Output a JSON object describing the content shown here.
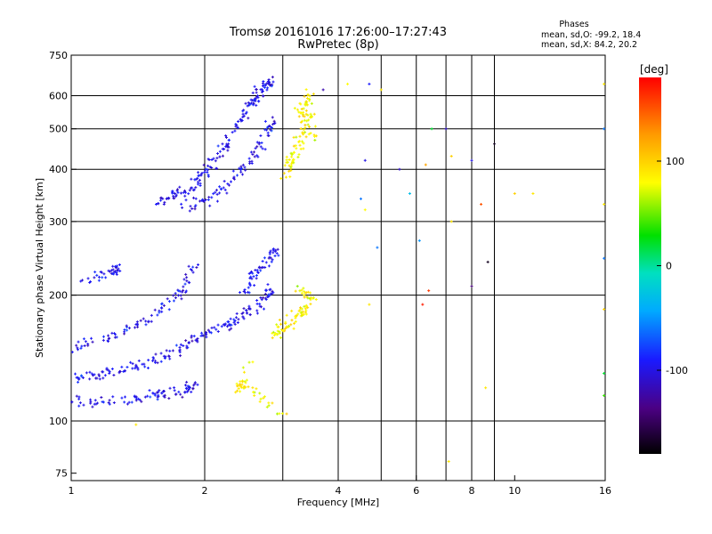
{
  "chart_data": {
    "type": "scatter",
    "title": "Tromsø 20161016 17:26:00–17:27:43",
    "subtitle": "RwPretec (8p)",
    "xlabel": "Frequency [MHz]",
    "ylabel": "Stationary phase Virtual Height [km]",
    "xscale": "log",
    "yscale": "log",
    "xlim": [
      1,
      16
    ],
    "ylim": [
      72,
      750
    ],
    "xticks": [
      {
        "v": 1,
        "label": "1"
      },
      {
        "v": 2,
        "label": "2"
      },
      {
        "v": 4,
        "label": "4"
      },
      {
        "v": 6,
        "label": "6"
      },
      {
        "v": 8,
        "label": "8"
      },
      {
        "v": 10,
        "label": "10"
      },
      {
        "v": 16,
        "label": "16"
      }
    ],
    "xgrid": [
      2,
      3,
      4,
      5,
      6,
      7,
      8,
      9
    ],
    "yticks": [
      {
        "v": 75,
        "label": "75"
      },
      {
        "v": 100,
        "label": "100"
      },
      {
        "v": 200,
        "label": "200"
      },
      {
        "v": 300,
        "label": "300"
      },
      {
        "v": 400,
        "label": "400"
      },
      {
        "v": 500,
        "label": "500"
      },
      {
        "v": 600,
        "label": "600"
      },
      {
        "v": 750,
        "label": "750"
      }
    ],
    "ygrid": [
      100,
      200,
      300,
      400,
      500,
      600
    ],
    "grid": true,
    "stats": {
      "heading": "Phases",
      "line1": "mean, sd,O: -99.2, 18.4",
      "line2": "mean, sd,X:  84.2, 20.2"
    },
    "colorbar": {
      "label": "[deg]",
      "range": [
        -180,
        180
      ],
      "ticks": [
        {
          "v": 100,
          "label": "100"
        },
        {
          "v": 0,
          "label": "0"
        },
        {
          "v": -100,
          "label": "-100"
        }
      ],
      "colormap": "rainbow"
    },
    "clusters": [
      {
        "name": "O-trace lower (E/F1 region)",
        "phase_mean": -99,
        "phase_sd": 18,
        "points": [
          [
            1.0,
            110
          ],
          [
            1.2,
            112
          ],
          [
            1.4,
            113
          ],
          [
            1.6,
            116
          ],
          [
            1.8,
            118
          ],
          [
            1.9,
            122
          ],
          [
            1.0,
            127
          ],
          [
            1.15,
            128
          ],
          [
            1.3,
            132
          ],
          [
            1.5,
            138
          ],
          [
            1.7,
            146
          ],
          [
            1.9,
            156
          ],
          [
            2.1,
            164
          ],
          [
            2.3,
            172
          ],
          [
            2.5,
            182
          ],
          [
            2.7,
            196
          ],
          [
            2.85,
            206
          ],
          [
            1.0,
            150
          ],
          [
            1.2,
            158
          ],
          [
            1.4,
            168
          ],
          [
            1.6,
            185
          ],
          [
            1.8,
            205
          ],
          [
            1.9,
            235
          ],
          [
            1.05,
            216
          ],
          [
            1.25,
            228
          ],
          [
            1.28,
            232
          ],
          [
            2.45,
            200
          ],
          [
            2.6,
            225
          ],
          [
            2.8,
            245
          ],
          [
            2.9,
            255
          ]
        ]
      },
      {
        "name": "O-trace upper (F2 region)",
        "phase_mean": -99,
        "phase_sd": 18,
        "points": [
          [
            1.55,
            330
          ],
          [
            1.7,
            345
          ],
          [
            1.85,
            360
          ],
          [
            2.0,
            395
          ],
          [
            2.2,
            440
          ],
          [
            2.35,
            500
          ],
          [
            2.5,
            560
          ],
          [
            2.6,
            600
          ],
          [
            2.75,
            640
          ],
          [
            2.85,
            650
          ],
          [
            1.8,
            320
          ],
          [
            2.05,
            340
          ],
          [
            2.3,
            380
          ],
          [
            2.55,
            420
          ],
          [
            2.75,
            470
          ],
          [
            2.85,
            530
          ]
        ]
      },
      {
        "name": "X-trace lower",
        "phase_mean": 84,
        "phase_sd": 20,
        "points": [
          [
            2.9,
            160
          ],
          [
            3.1,
            170
          ],
          [
            3.3,
            180
          ],
          [
            3.5,
            195
          ],
          [
            3.3,
            205
          ],
          [
            2.35,
            120
          ],
          [
            2.5,
            122
          ],
          [
            3.1,
            102
          ]
        ]
      },
      {
        "name": "X-trace upper",
        "phase_mean": 84,
        "phase_sd": 20,
        "points": [
          [
            3.05,
            390
          ],
          [
            3.15,
            420
          ],
          [
            3.25,
            460
          ],
          [
            3.4,
            500
          ],
          [
            3.3,
            560
          ],
          [
            3.45,
            610
          ],
          [
            3.55,
            450
          ]
        ]
      }
    ],
    "scattered_points": [
      {
        "x": 4.7,
        "y": 640,
        "phase": -90
      },
      {
        "x": 5.0,
        "y": 620,
        "phase": 90
      },
      {
        "x": 4.2,
        "y": 640,
        "phase": 80
      },
      {
        "x": 3.7,
        "y": 620,
        "phase": -120
      },
      {
        "x": 4.6,
        "y": 420,
        "phase": -100
      },
      {
        "x": 5.5,
        "y": 400,
        "phase": -110
      },
      {
        "x": 4.5,
        "y": 340,
        "phase": -60
      },
      {
        "x": 4.6,
        "y": 320,
        "phase": 80
      },
      {
        "x": 5.8,
        "y": 350,
        "phase": -30
      },
      {
        "x": 6.3,
        "y": 410,
        "phase": 120
      },
      {
        "x": 7.2,
        "y": 430,
        "phase": 100
      },
      {
        "x": 8.0,
        "y": 420,
        "phase": -100
      },
      {
        "x": 8.4,
        "y": 330,
        "phase": 150
      },
      {
        "x": 9.0,
        "y": 460,
        "phase": -170
      },
      {
        "x": 10.0,
        "y": 350,
        "phase": 100
      },
      {
        "x": 11.0,
        "y": 350,
        "phase": 90
      },
      {
        "x": 6.5,
        "y": 500,
        "phase": 20
      },
      {
        "x": 7.0,
        "y": 500,
        "phase": -110
      },
      {
        "x": 4.9,
        "y": 260,
        "phase": -60
      },
      {
        "x": 6.1,
        "y": 270,
        "phase": -50
      },
      {
        "x": 6.4,
        "y": 205,
        "phase": 160
      },
      {
        "x": 7.2,
        "y": 300,
        "phase": 90
      },
      {
        "x": 8.0,
        "y": 210,
        "phase": -140
      },
      {
        "x": 8.7,
        "y": 240,
        "phase": -170
      },
      {
        "x": 4.7,
        "y": 190,
        "phase": 90
      },
      {
        "x": 6.2,
        "y": 190,
        "phase": 170
      },
      {
        "x": 8.6,
        "y": 120,
        "phase": 90
      },
      {
        "x": 7.1,
        "y": 80,
        "phase": 90
      },
      {
        "x": 15.9,
        "y": 640,
        "phase": 90
      },
      {
        "x": 15.9,
        "y": 500,
        "phase": -60
      },
      {
        "x": 15.9,
        "y": 330,
        "phase": 90
      },
      {
        "x": 15.9,
        "y": 185,
        "phase": 100
      },
      {
        "x": 15.9,
        "y": 130,
        "phase": 20
      },
      {
        "x": 15.9,
        "y": 115,
        "phase": 40
      },
      {
        "x": 15.9,
        "y": 245,
        "phase": -60
      },
      {
        "x": 1.4,
        "y": 98,
        "phase": 90
      }
    ]
  }
}
